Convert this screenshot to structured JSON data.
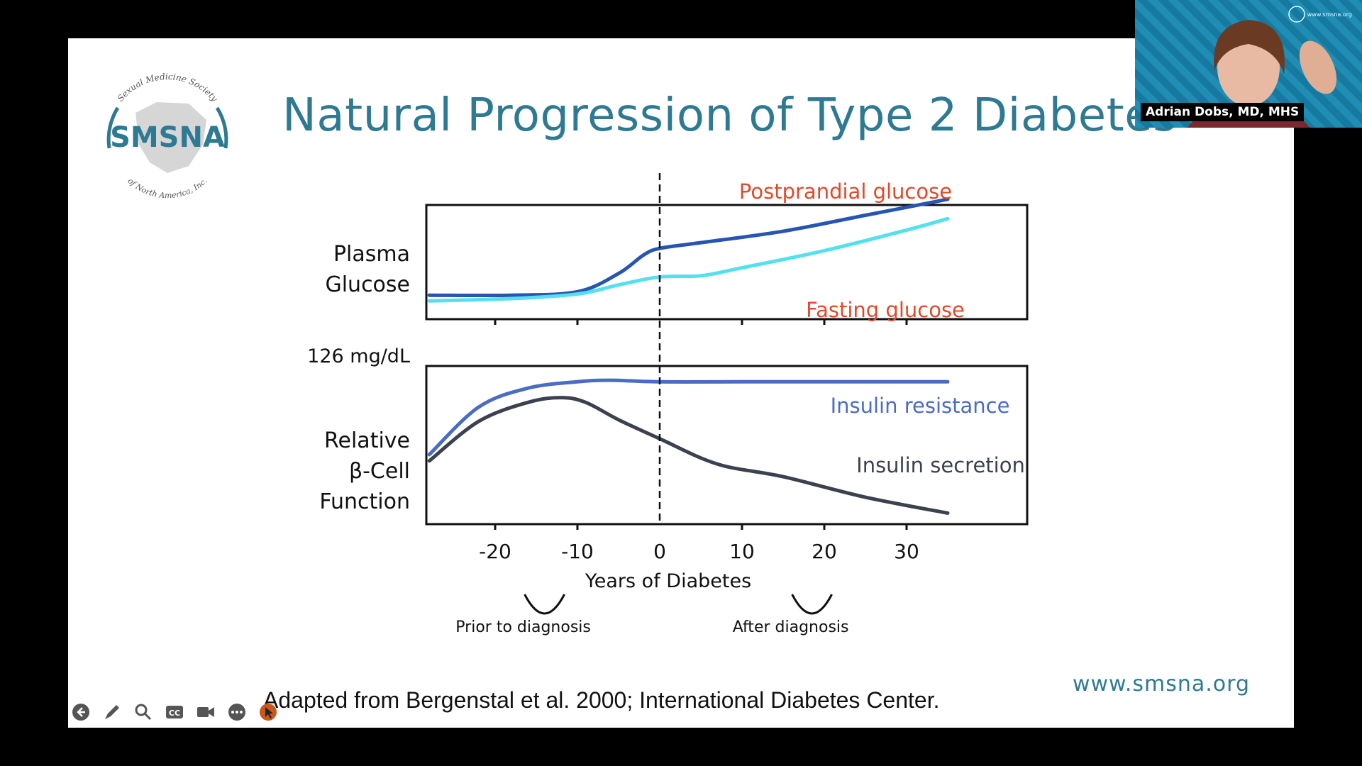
{
  "slide": {
    "title": "Natural Progression of Type 2 Diabetes",
    "citation": "Adapted from Bergenstal et al. 2000; International Diabetes Center.",
    "website": "www.smsna.org"
  },
  "logo": {
    "top_arc_text": "Sexual Medicine Society",
    "bottom_arc_text": "of North America, Inc.",
    "abbreviation": "SMSNA",
    "color": "#2e7a92"
  },
  "video_tile": {
    "speaker_name": "Adrian Dobs, MD, MHS",
    "site": "www.smsna.org"
  },
  "toolbar": {
    "icons": [
      "back-arrow-icon",
      "pen-icon",
      "magnifier-icon",
      "closed-caption-icon",
      "video-camera-icon",
      "more-options-icon",
      "pointer-icon"
    ],
    "cc_label": "CC",
    "active_color": "#c8581c"
  },
  "chart_data": {
    "type": "line",
    "xlabel": "Years of Diabetes",
    "x_ticks": [
      "-20",
      "-10",
      "0",
      "10",
      "20",
      "30"
    ],
    "xlim": [
      -28,
      35
    ],
    "diagnosis_line_x": 0,
    "panels": [
      {
        "ylabel": [
          "Plasma",
          "Glucose"
        ],
        "y_marker": "126 mg/dL",
        "series": [
          {
            "name": "Postprandial glucose",
            "color": "#2655b3",
            "x": [
              -28,
              -18,
              -10,
              -5,
              -2,
              0,
              5,
              15,
              25,
              35
            ],
            "y": [
              0.21,
              0.21,
              0.24,
              0.4,
              0.56,
              0.62,
              0.67,
              0.77,
              0.91,
              1.05
            ]
          },
          {
            "name": "Fasting glucose",
            "color": "#55e0ee",
            "x": [
              -28,
              -18,
              -10,
              -5,
              0,
              5,
              10,
              20,
              30,
              35
            ],
            "y": [
              0.16,
              0.18,
              0.22,
              0.3,
              0.37,
              0.38,
              0.45,
              0.6,
              0.78,
              0.88
            ]
          }
        ],
        "label_color": "#e04a2a"
      },
      {
        "ylabel": [
          "Relative",
          "β-Cell",
          "Function"
        ],
        "series": [
          {
            "name": "Insulin resistance",
            "color": "#4a6cc4",
            "x": [
              -28,
              -22,
              -16,
              -10,
              -6,
              0,
              10,
              20,
              30,
              35
            ],
            "y": [
              0.44,
              0.74,
              0.86,
              0.9,
              0.91,
              0.9,
              0.9,
              0.9,
              0.9,
              0.9
            ]
          },
          {
            "name": "Insulin secretion",
            "color": "#3c4150",
            "x": [
              -28,
              -22,
              -16,
              -12,
              -9,
              -5,
              0,
              7,
              15,
              25,
              35
            ],
            "y": [
              0.4,
              0.65,
              0.77,
              0.8,
              0.77,
              0.66,
              0.54,
              0.38,
              0.3,
              0.17,
              0.07
            ]
          }
        ],
        "label_colors": [
          "#4a6cc4",
          "#3c4150"
        ]
      }
    ],
    "annotations": [
      {
        "text": "Prior to diagnosis",
        "x": -14
      },
      {
        "text": "After diagnosis",
        "x": 18.5
      }
    ]
  }
}
